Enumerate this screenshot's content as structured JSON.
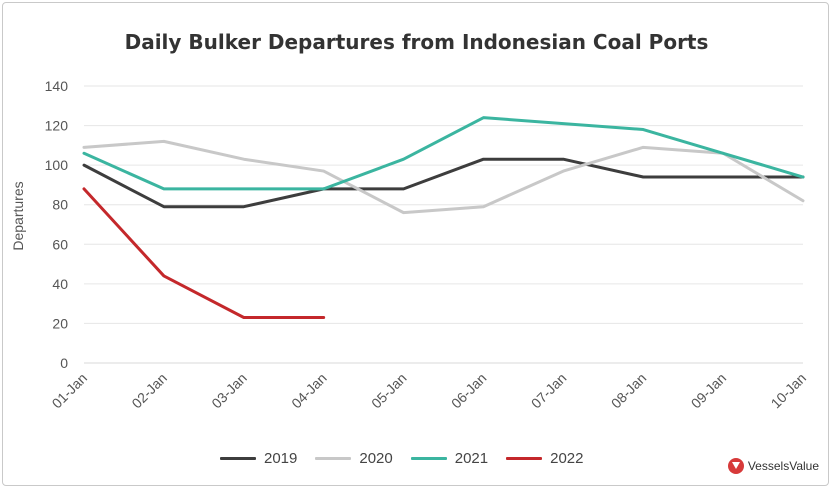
{
  "chart_data": {
    "type": "line",
    "title": "Daily Bulker Departures from Indonesian Coal Ports",
    "ylabel": "Departures",
    "xlabel": "",
    "ylim": [
      0,
      140
    ],
    "yticks": [
      0,
      20,
      40,
      60,
      80,
      100,
      120,
      140
    ],
    "grid": true,
    "legend_position": "bottom",
    "categories": [
      "01-Jan",
      "02-Jan",
      "03-Jan",
      "04-Jan",
      "05-Jan",
      "06-Jan",
      "07-Jan",
      "08-Jan",
      "09-Jan",
      "10-Jan"
    ],
    "series": [
      {
        "name": "2019",
        "color": "#3d3d3d",
        "values": [
          100,
          79,
          79,
          88,
          88,
          103,
          103,
          94,
          94,
          94
        ]
      },
      {
        "name": "2020",
        "color": "#c8c8c8",
        "values": [
          109,
          112,
          103,
          97,
          76,
          79,
          97,
          109,
          106,
          82
        ]
      },
      {
        "name": "2021",
        "color": "#3bb5a0",
        "values": [
          106,
          88,
          88,
          88,
          103,
          124,
          121,
          118,
          106,
          94
        ]
      },
      {
        "name": "2022",
        "color": "#c4282b",
        "values": [
          88,
          44,
          23,
          23,
          null,
          null,
          null,
          null,
          null,
          null
        ]
      }
    ]
  },
  "brand": {
    "label": "VesselsValue",
    "color": "#d73a3a"
  }
}
